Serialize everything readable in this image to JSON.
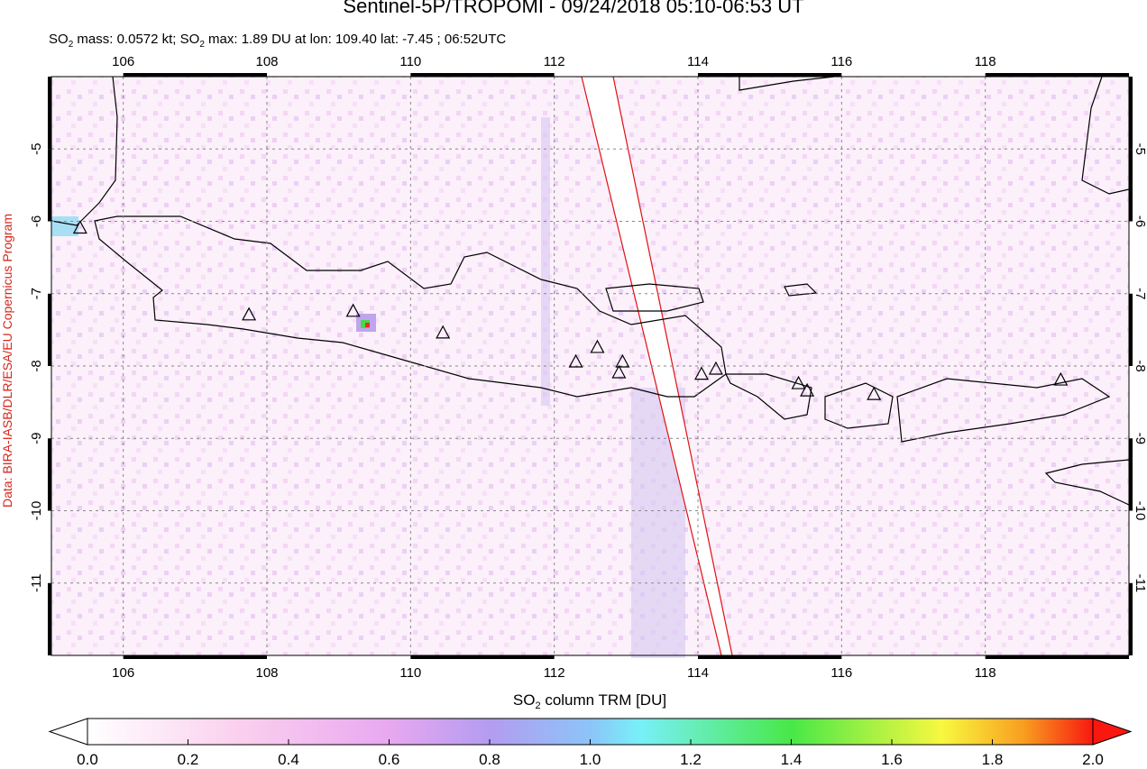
{
  "header": {
    "title": "Sentinel-5P/TROPOMI - 09/24/2018 05:10-06:53 UT",
    "subtitle": [
      "SO",
      "2",
      " mass: 0.0572 kt; SO",
      "2",
      " max: 1.89 DU at lon: 109.40 lat: -7.45 ; 06:52UTC"
    ]
  },
  "credit": "Data: BIRA-IASB/DLR/ESA/EU Copernicus Program",
  "map": {
    "lon_range": [
      105,
      120
    ],
    "lat_range": [
      -12,
      -4
    ],
    "lon_ticks": [
      106,
      108,
      110,
      112,
      114,
      116,
      118
    ],
    "lat_ticks": [
      -5,
      -6,
      -7,
      -8,
      -9,
      -10,
      -11
    ],
    "volcanoes": [
      [
        105.4,
        -6.1
      ],
      [
        107.75,
        -7.3
      ],
      [
        109.2,
        -7.25
      ],
      [
        110.45,
        -7.55
      ],
      [
        112.3,
        -7.95
      ],
      [
        112.6,
        -7.75
      ],
      [
        112.95,
        -7.95
      ],
      [
        112.9,
        -8.1
      ],
      [
        114.05,
        -8.12
      ],
      [
        114.25,
        -8.05
      ],
      [
        115.4,
        -8.25
      ],
      [
        115.52,
        -8.35
      ],
      [
        116.45,
        -8.4
      ],
      [
        119.05,
        -8.2
      ]
    ]
  },
  "colorbar": {
    "label": [
      "SO",
      "2",
      " column TRM [DU]"
    ],
    "range": [
      0,
      2
    ],
    "ticks": [
      {
        "value": 0,
        "label": "0.0"
      },
      {
        "value": 0.2,
        "label": "0.2"
      },
      {
        "value": 0.4,
        "label": "0.4"
      },
      {
        "value": 0.6,
        "label": "0.6"
      },
      {
        "value": 0.8,
        "label": "0.8"
      },
      {
        "value": 1.0,
        "label": "1.0"
      },
      {
        "value": 1.2,
        "label": "1.2"
      },
      {
        "value": 1.4,
        "label": "1.4"
      },
      {
        "value": 1.6,
        "label": "1.6"
      },
      {
        "value": 1.8,
        "label": "1.8"
      },
      {
        "value": 2.0,
        "label": "2.0"
      }
    ]
  }
}
